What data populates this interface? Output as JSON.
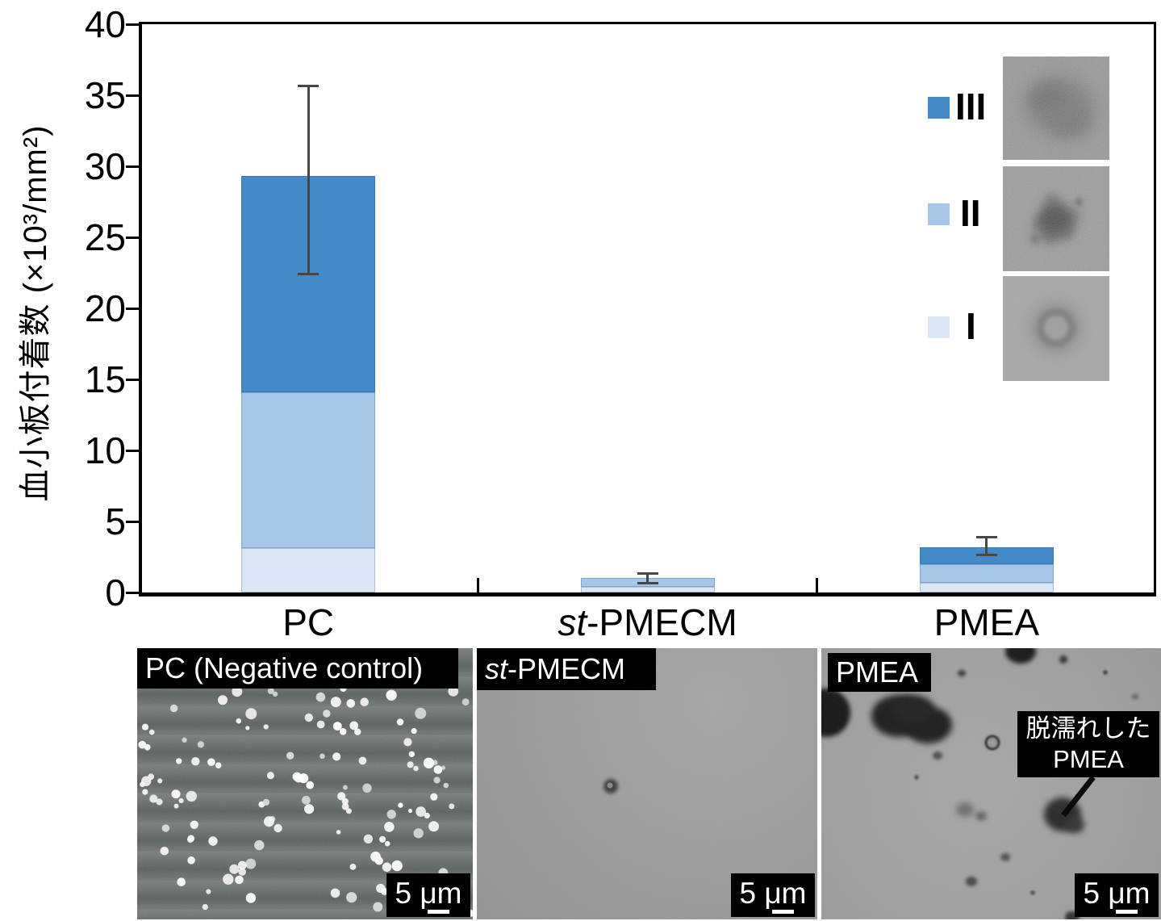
{
  "chart_data": {
    "type": "bar",
    "stacked": true,
    "title": "",
    "xlabel": "",
    "ylabel": "血小板付着数 (×10³/mm²)",
    "ylim": [
      0,
      40
    ],
    "yticks": [
      0,
      5,
      10,
      15,
      20,
      25,
      30,
      35,
      40
    ],
    "grid": false,
    "categories": [
      "PC",
      "st-PMECM",
      "PMEA"
    ],
    "series": [
      {
        "name": "I",
        "color": "#dbe7f4",
        "values": [
          3.1,
          0.4,
          0.7
        ]
      },
      {
        "name": "II",
        "color": "#a6c7e8",
        "values": [
          11.0,
          0.6,
          1.3
        ]
      },
      {
        "name": "III",
        "color": "#4489c8",
        "values": [
          15.2,
          0.0,
          1.2
        ]
      }
    ],
    "totals": [
      29.3,
      1.0,
      3.2
    ],
    "error_bars": {
      "upper": [
        35.7,
        1.35,
        3.9
      ],
      "lower": [
        22.4,
        0.6,
        2.6
      ]
    },
    "legend_position": "upper-right"
  },
  "legend": {
    "entries": [
      {
        "label": "III",
        "color": "#4489c8",
        "thumb": "fully-spread-platelet-micrograph"
      },
      {
        "label": "II",
        "color": "#a6c7e8",
        "thumb": "pseudopodia-platelet-micrograph"
      },
      {
        "label": "I",
        "color": "#dbe7f4",
        "thumb": "round-platelet-micrograph"
      }
    ]
  },
  "panels": [
    {
      "label_italic": "",
      "label": "PC (Negative control)",
      "scale_label": "5 μm"
    },
    {
      "label_italic": "st",
      "label": "-PMECM",
      "scale_label": "5 μm"
    },
    {
      "label_italic": "",
      "label": "PMEA",
      "scale_label": "5 μm",
      "annotation_line1": "脱濡れした",
      "annotation_line2": "PMEA"
    }
  ]
}
